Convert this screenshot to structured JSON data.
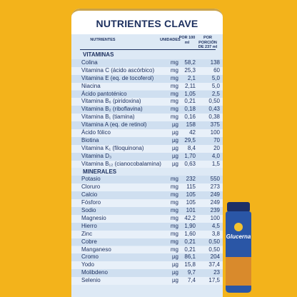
{
  "title": "NUTRIENTES CLAVE",
  "columns": [
    "NUTRIENTES",
    "UNIDADES",
    "POR 100 ml",
    "POR PORCIÓN DE 237 ml"
  ],
  "sections": [
    {
      "name": "VITAMINAS",
      "rows": [
        [
          "Colina",
          "mg",
          "58,2",
          "138"
        ],
        [
          "Vitamina C (ácido ascórbico)",
          "mg",
          "25,3",
          "60"
        ],
        [
          "Vitamina E (eq. de tocoferol)",
          "mg",
          "2,1",
          "5,0"
        ],
        [
          "Niacina",
          "mg",
          "2,11",
          "5,0"
        ],
        [
          "Ácido pantoténico",
          "mg",
          "1,05",
          "2,5"
        ],
        [
          "Vitamina B₆ (piridoxina)",
          "mg",
          "0,21",
          "0,50"
        ],
        [
          "Vitamina B₂ (riboflavina)",
          "mg",
          "0,18",
          "0,43"
        ],
        [
          "Vitamina B₁ (tiamina)",
          "mg",
          "0,16",
          "0,38"
        ],
        [
          "Vitamina A (eq. de retinol)",
          "µg",
          "158",
          "375"
        ],
        [
          "Ácido fólico",
          "µg",
          "42",
          "100"
        ],
        [
          "Biotina",
          "µg",
          "29,5",
          "70"
        ],
        [
          "Vitamina K₁ (filoquinona)",
          "µg",
          "8,4",
          "20"
        ],
        [
          "Vitamina D₃",
          "µg",
          "1,70",
          "4,0"
        ],
        [
          "Vitamina B₁₂ (cianocobalamina)",
          "µg",
          "0,63",
          "1,5"
        ]
      ]
    },
    {
      "name": "MINERALES",
      "rows": [
        [
          "Potasio",
          "mg",
          "232",
          "550"
        ],
        [
          "Cloruro",
          "mg",
          "115",
          "273"
        ],
        [
          "Calcio",
          "mg",
          "105",
          "249"
        ],
        [
          "Fósforo",
          "mg",
          "105",
          "249"
        ],
        [
          "Sodio",
          "mg",
          "101",
          "239"
        ],
        [
          "Magnesio",
          "mg",
          "42,2",
          "100"
        ],
        [
          "Hierro",
          "mg",
          "1,90",
          "4,5"
        ],
        [
          "Zinc",
          "mg",
          "1,60",
          "3,8"
        ],
        [
          "Cobre",
          "mg",
          "0,21",
          "0,50"
        ],
        [
          "Manganeso",
          "mg",
          "0,21",
          "0,50"
        ],
        [
          "Cromo",
          "µg",
          "86,1",
          "204"
        ],
        [
          "Yodo",
          "µg",
          "15,8",
          "37,4"
        ],
        [
          "Molibdeno",
          "µg",
          "9,7",
          "23"
        ],
        [
          "Selenio",
          "µg",
          "7,4",
          "17,5"
        ]
      ]
    }
  ],
  "product_label": "Glucerna"
}
